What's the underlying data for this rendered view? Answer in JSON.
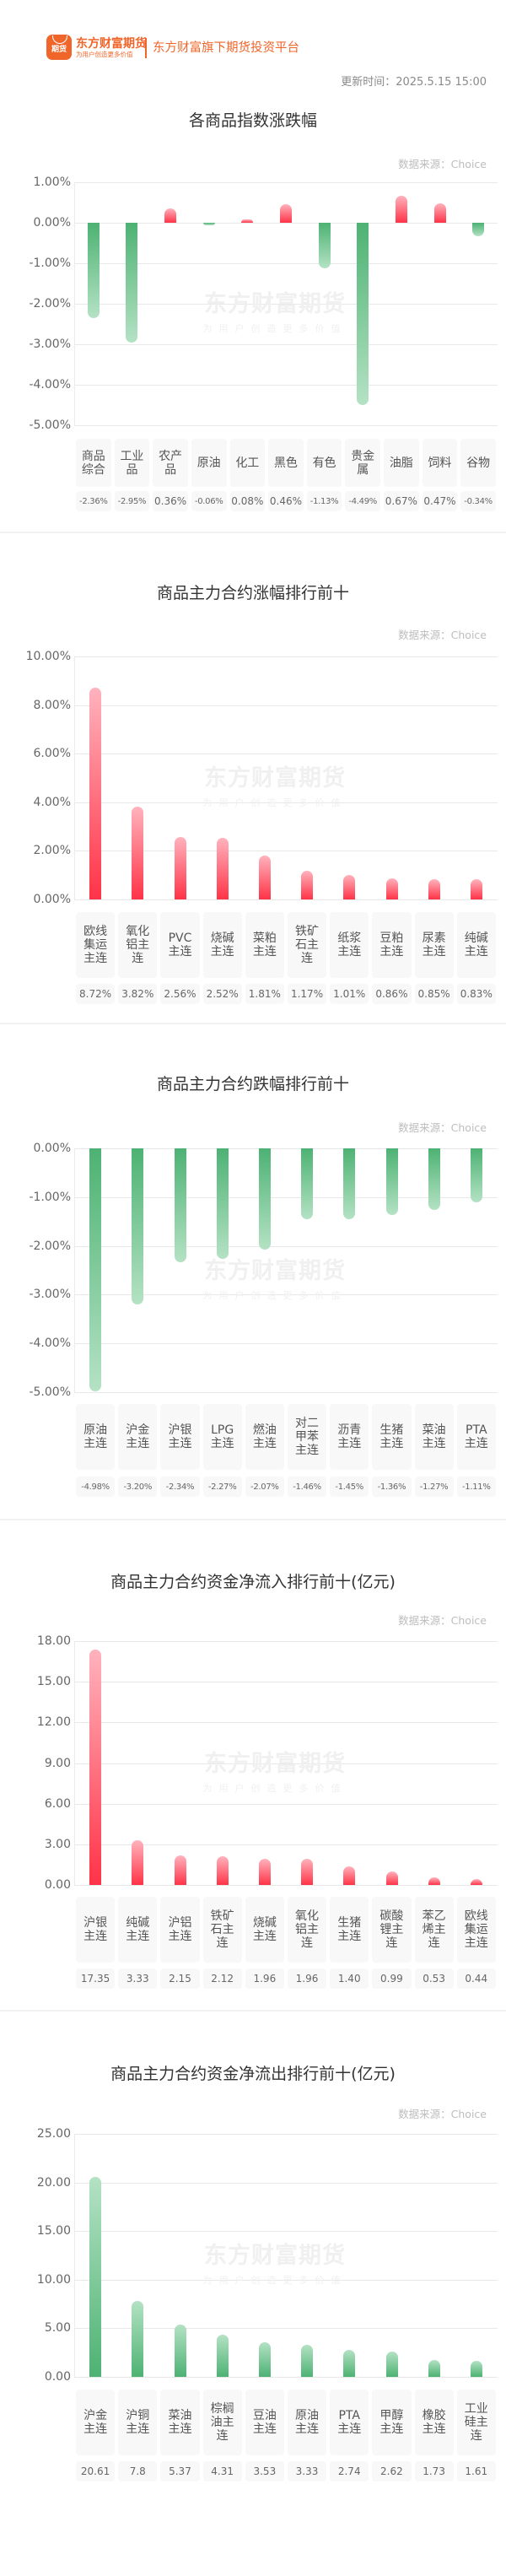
{
  "header": {
    "logo_badge": "期货",
    "logo_name": "东方财富期货",
    "logo_slogan": "为用户创造更多价值",
    "platform": "东方财富旗下期货投资平台",
    "update_time": "更新时间：2025.5.15 15:00"
  },
  "watermark": {
    "line1": "东方财富期货",
    "line2": "为用户创造更多价值"
  },
  "colors": {
    "brand": "#f0662a",
    "up": "#ff3347",
    "down": "#4db273",
    "grid": "#e8e8e8"
  },
  "chart_data": [
    {
      "type": "bar",
      "title": "各商品指数涨跌幅",
      "source": "数据来源：Choice",
      "categories": [
        "商品综合",
        "工业品",
        "农产品",
        "原油",
        "化工",
        "黑色",
        "有色",
        "贵金属",
        "油脂",
        "饲料",
        "谷物"
      ],
      "values": [
        -2.36,
        -2.95,
        0.36,
        -0.06,
        0.08,
        0.46,
        -1.13,
        -4.49,
        0.67,
        0.47,
        -0.34
      ],
      "value_labels": [
        "-2.36%",
        "-2.95%",
        "0.36%",
        "-0.06%",
        "0.08%",
        "0.46%",
        "-1.13%",
        "-4.49%",
        "0.67%",
        "0.47%",
        "-0.34%"
      ],
      "yticks": [
        "1.00%",
        "0.00%",
        "-1.00%",
        "-2.00%",
        "-3.00%",
        "-4.00%",
        "-5.00%"
      ],
      "ylim": [
        -5,
        1
      ],
      "xlabel": "",
      "ylabel": "",
      "grid": true
    },
    {
      "type": "bar",
      "title": "商品主力合约涨幅排行前十",
      "source": "数据来源：Choice",
      "categories": [
        "欧线集运主连",
        "氧化铝主连",
        "PVC主连",
        "烧碱主连",
        "菜粕主连",
        "铁矿石主连",
        "纸浆主连",
        "豆粕主连",
        "尿素主连",
        "纯碱主连"
      ],
      "values": [
        8.72,
        3.82,
        2.56,
        2.52,
        1.81,
        1.17,
        1.01,
        0.86,
        0.85,
        0.83
      ],
      "value_labels": [
        "8.72%",
        "3.82%",
        "2.56%",
        "2.52%",
        "1.81%",
        "1.17%",
        "1.01%",
        "0.86%",
        "0.85%",
        "0.83%"
      ],
      "yticks": [
        "10.00%",
        "8.00%",
        "6.00%",
        "4.00%",
        "2.00%",
        "0.00%"
      ],
      "ylim": [
        0,
        10
      ],
      "xlabel": "",
      "ylabel": "",
      "grid": true
    },
    {
      "type": "bar",
      "title": "商品主力合约跌幅排行前十",
      "source": "数据来源：Choice",
      "categories": [
        "原油主连",
        "沪金主连",
        "沪银主连",
        "LPG主连",
        "燃油主连",
        "对二甲苯主连",
        "沥青主连",
        "生猪主连",
        "菜油主连",
        "PTA主连"
      ],
      "values": [
        -4.98,
        -3.2,
        -2.34,
        -2.27,
        -2.07,
        -1.46,
        -1.45,
        -1.36,
        -1.27,
        -1.11
      ],
      "value_labels": [
        "-4.98%",
        "-3.20%",
        "-2.34%",
        "-2.27%",
        "-2.07%",
        "-1.46%",
        "-1.45%",
        "-1.36%",
        "-1.27%",
        "-1.11%"
      ],
      "yticks": [
        "0.00%",
        "-1.00%",
        "-2.00%",
        "-3.00%",
        "-4.00%",
        "-5.00%"
      ],
      "ylim": [
        -5,
        0
      ],
      "xlabel": "",
      "ylabel": "",
      "grid": true
    },
    {
      "type": "bar",
      "title": "商品主力合约资金净流入排行前十(亿元)",
      "source": "数据来源：Choice",
      "categories": [
        "沪银主连",
        "纯碱主连",
        "沪铝主连",
        "铁矿石主连",
        "烧碱主连",
        "氧化铝主连",
        "生猪主连",
        "碳酸锂主连",
        "苯乙烯主连",
        "欧线集运主连"
      ],
      "values": [
        17.35,
        3.33,
        2.15,
        2.12,
        1.96,
        1.96,
        1.4,
        0.99,
        0.53,
        0.44
      ],
      "value_labels": [
        "17.35",
        "3.33",
        "2.15",
        "2.12",
        "1.96",
        "1.96",
        "1.40",
        "0.99",
        "0.53",
        "0.44"
      ],
      "yticks": [
        "18.00",
        "15.00",
        "12.00",
        "9.00",
        "6.00",
        "3.00",
        "0.00"
      ],
      "ylim": [
        0,
        18
      ],
      "xlabel": "",
      "ylabel": "亿元",
      "grid": true
    },
    {
      "type": "bar",
      "title": "商品主力合约资金净流出排行前十(亿元)",
      "source": "数据来源：Choice",
      "categories": [
        "沪金主连",
        "沪铜主连",
        "菜油主连",
        "棕榈油主连",
        "豆油主连",
        "原油主连",
        "PTA主连",
        "甲醇主连",
        "橡胶主连",
        "工业硅主连"
      ],
      "values": [
        20.61,
        7.8,
        5.37,
        4.31,
        3.53,
        3.33,
        2.74,
        2.62,
        1.73,
        1.61
      ],
      "value_labels": [
        "20.61",
        "7.8",
        "5.37",
        "4.31",
        "3.53",
        "3.33",
        "2.74",
        "2.62",
        "1.73",
        "1.61"
      ],
      "yticks": [
        "25.00",
        "20.00",
        "15.00",
        "10.00",
        "5.00",
        "0.00"
      ],
      "ylim": [
        0,
        25
      ],
      "xlabel": "",
      "ylabel": "亿元",
      "grid": true
    }
  ]
}
